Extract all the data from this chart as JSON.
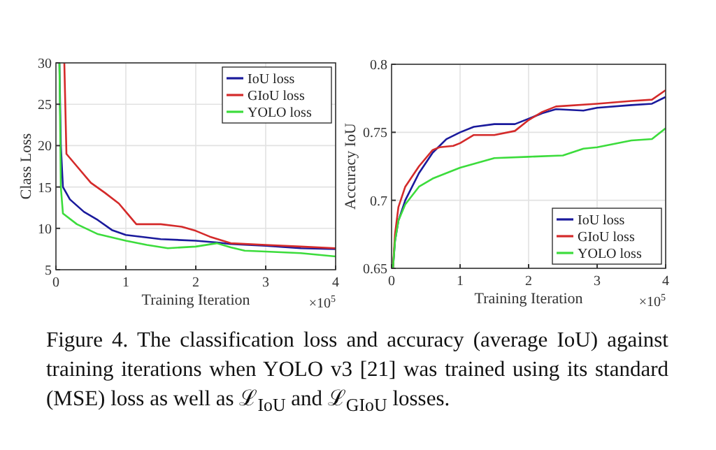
{
  "chart_data": [
    {
      "type": "line",
      "xlabel": "Training Iteration",
      "ylabel": "Class Loss",
      "xlim": [
        0,
        4
      ],
      "xticks": [
        0,
        1,
        2,
        3,
        4
      ],
      "ylim": [
        5,
        30
      ],
      "yticks": [
        5,
        10,
        15,
        20,
        25,
        30
      ],
      "grid": true,
      "legend": "top right",
      "annotations": [
        "×10$^{5}$",
        "Figure 4. The classification loss and accuracy (average IoU) against training iterations when YOLO v3 [21] was trained using its standard (MSE) loss as well as ℒ$_{IoU}$ and ℒ$_{GIoU}$ losses."
      ],
      "series": [
        {
          "name": "IoU loss",
          "color": "#1a1a9c",
          "x": [
            0.05,
            0.07,
            0.1,
            0.2,
            0.4,
            0.6,
            0.8,
            1,
            1.5,
            2,
            2.3,
            2.5,
            3,
            3.5,
            4
          ],
          "values": [
            30,
            20,
            15,
            13.5,
            12,
            11,
            9.8,
            9.2,
            8.7,
            8.5,
            8.3,
            8.1,
            7.9,
            7.6,
            7.5
          ]
        },
        {
          "name": "GIoU loss",
          "color": "#d42a2a",
          "x": [
            0.12,
            0.15,
            0.3,
            0.5,
            0.7,
            0.9,
            1.0,
            1.15,
            1.5,
            1.8,
            2,
            2.2,
            2.5,
            3,
            3.5,
            4
          ],
          "values": [
            30,
            19,
            17.5,
            15.5,
            14.3,
            13,
            12,
            10.5,
            10.5,
            10.2,
            9.7,
            9,
            8.2,
            8,
            7.8,
            7.6
          ]
        },
        {
          "name": "YOLO loss",
          "color": "#3cdc3c",
          "x": [
            0.05,
            0.07,
            0.1,
            0.3,
            0.6,
            1,
            1.3,
            1.6,
            2,
            2.3,
            2.5,
            2.7,
            3,
            3.5,
            4
          ],
          "values": [
            30,
            15,
            11.8,
            10.5,
            9.3,
            8.5,
            8.0,
            7.6,
            7.8,
            8.2,
            7.7,
            7.3,
            7.2,
            7,
            6.6
          ]
        }
      ]
    },
    {
      "type": "line",
      "xlabel": "Training Iteration",
      "ylabel": "Accuracy IoU",
      "xlim": [
        0,
        4
      ],
      "xticks": [
        0,
        1,
        2,
        3,
        4
      ],
      "ylim": [
        0.65,
        0.8
      ],
      "yticks": [
        0.65,
        0.7,
        0.75,
        0.8
      ],
      "grid": true,
      "legend": "bottom right",
      "annotations": [
        "×10$^{5}$"
      ],
      "series": [
        {
          "name": "IoU loss",
          "color": "#1a1a9c",
          "x": [
            0.02,
            0.05,
            0.1,
            0.2,
            0.4,
            0.6,
            0.8,
            1,
            1.2,
            1.5,
            1.8,
            2,
            2.2,
            2.4,
            2.8,
            3,
            3.5,
            3.8,
            4
          ],
          "values": [
            0.65,
            0.67,
            0.685,
            0.7,
            0.72,
            0.735,
            0.745,
            0.75,
            0.754,
            0.756,
            0.756,
            0.76,
            0.764,
            0.767,
            0.766,
            0.768,
            0.77,
            0.771,
            0.776
          ]
        },
        {
          "name": "GIoU loss",
          "color": "#d42a2a",
          "x": [
            0.02,
            0.05,
            0.1,
            0.2,
            0.4,
            0.6,
            0.7,
            0.9,
            1.0,
            1.2,
            1.5,
            1.8,
            2,
            2.2,
            2.4,
            3,
            3.5,
            3.8,
            4
          ],
          "values": [
            0.65,
            0.675,
            0.695,
            0.71,
            0.725,
            0.737,
            0.739,
            0.74,
            0.742,
            0.748,
            0.748,
            0.751,
            0.759,
            0.765,
            0.769,
            0.771,
            0.773,
            0.774,
            0.781
          ]
        },
        {
          "name": "YOLO loss",
          "color": "#3cdc3c",
          "x": [
            0.02,
            0.05,
            0.1,
            0.2,
            0.4,
            0.6,
            1,
            1.5,
            2,
            2.5,
            2.8,
            3,
            3.5,
            3.8,
            4
          ],
          "values": [
            0.65,
            0.67,
            0.685,
            0.697,
            0.71,
            0.716,
            0.724,
            0.731,
            0.732,
            0.733,
            0.738,
            0.739,
            0.744,
            0.745,
            0.753
          ]
        }
      ]
    }
  ]
}
